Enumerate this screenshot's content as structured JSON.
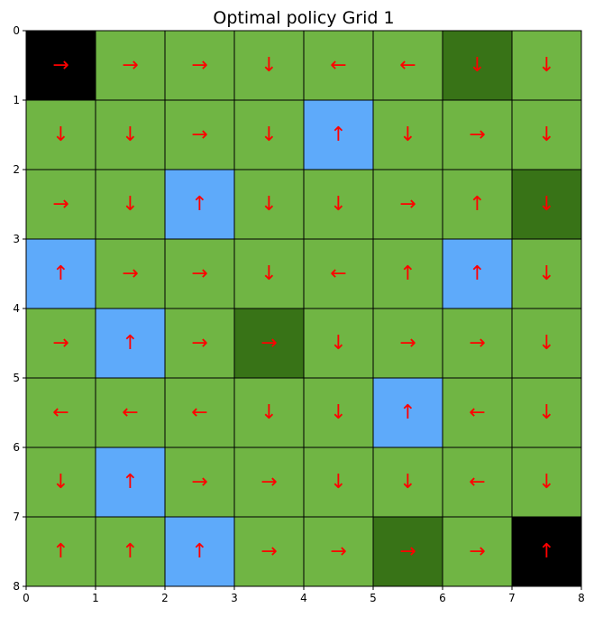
{
  "chart_data": {
    "type": "heatmap",
    "title": "Optimal policy Grid 1",
    "xlabel": "",
    "ylabel": "",
    "xlim": [
      0,
      8
    ],
    "ylim": [
      8,
      0
    ],
    "x_ticks": [
      "0",
      "1",
      "2",
      "3",
      "4",
      "5",
      "6",
      "7",
      "8"
    ],
    "y_ticks": [
      "0",
      "1",
      "2",
      "3",
      "4",
      "5",
      "6",
      "7",
      "8"
    ],
    "grid": true,
    "cell_colors": {
      "terminal": "#000000",
      "normal": "#70b544",
      "dark": "#387317",
      "blue": "#5eaafa"
    },
    "arrow_color": "#ff0000",
    "cells": [
      [
        "terminal",
        "normal",
        "normal",
        "normal",
        "normal",
        "normal",
        "dark",
        "normal"
      ],
      [
        "normal",
        "normal",
        "normal",
        "normal",
        "blue",
        "normal",
        "normal",
        "normal"
      ],
      [
        "normal",
        "normal",
        "blue",
        "normal",
        "normal",
        "normal",
        "normal",
        "dark"
      ],
      [
        "blue",
        "normal",
        "normal",
        "normal",
        "normal",
        "normal",
        "blue",
        "normal"
      ],
      [
        "normal",
        "blue",
        "normal",
        "dark",
        "normal",
        "normal",
        "normal",
        "normal"
      ],
      [
        "normal",
        "normal",
        "normal",
        "normal",
        "normal",
        "blue",
        "normal",
        "normal"
      ],
      [
        "normal",
        "blue",
        "normal",
        "normal",
        "normal",
        "normal",
        "normal",
        "normal"
      ],
      [
        "normal",
        "normal",
        "blue",
        "normal",
        "normal",
        "dark",
        "normal",
        "terminal"
      ]
    ],
    "policy": [
      [
        "→",
        "→",
        "→",
        "↓",
        "←",
        "←",
        "↓",
        "↓"
      ],
      [
        "↓",
        "↓",
        "→",
        "↓",
        "↑",
        "↓",
        "→",
        "↓"
      ],
      [
        "→",
        "↓",
        "↑",
        "↓",
        "↓",
        "→",
        "↑",
        "↓"
      ],
      [
        "↑",
        "→",
        "→",
        "↓",
        "←",
        "↑",
        "↑",
        "↓"
      ],
      [
        "→",
        "↑",
        "→",
        "→",
        "↓",
        "→",
        "→",
        "↓"
      ],
      [
        "←",
        "←",
        "←",
        "↓",
        "↓",
        "↑",
        "←",
        "↓"
      ],
      [
        "↓",
        "↑",
        "→",
        "→",
        "↓",
        "↓",
        "←",
        "↓"
      ],
      [
        "↑",
        "↑",
        "↑",
        "→",
        "→",
        "→",
        "→",
        "↑"
      ]
    ]
  }
}
